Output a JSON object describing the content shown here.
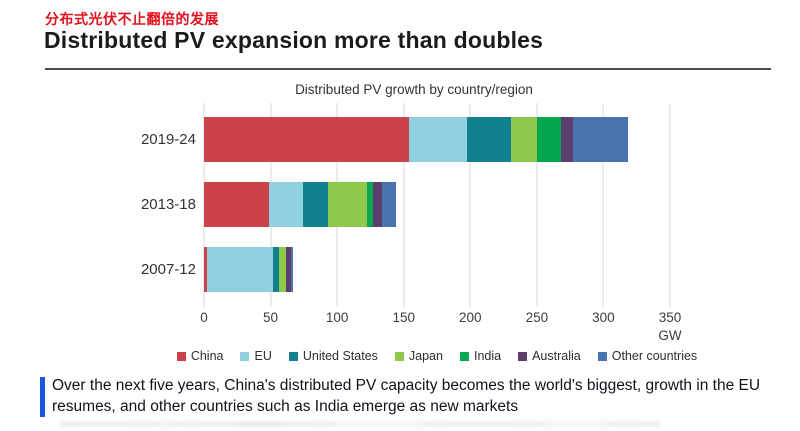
{
  "header": {
    "subtitle_cn": "分布式光伏不止翻倍的发展",
    "title": "Distributed PV expansion more than doubles"
  },
  "chart_data": {
    "type": "bar",
    "orientation": "horizontal",
    "stacked": true,
    "title": "Distributed PV growth by country/region",
    "unit": "GW",
    "categories": [
      "2019-24",
      "2013-18",
      "2007-12"
    ],
    "series": [
      {
        "name": "China",
        "color": "#cb4349",
        "values": [
          154,
          49,
          2.5
        ]
      },
      {
        "name": "EU",
        "color": "#8fd1e0",
        "values": [
          43.5,
          25,
          49
        ]
      },
      {
        "name": "United States",
        "color": "#11808e",
        "values": [
          33,
          19.5,
          4.7
        ]
      },
      {
        "name": "Japan",
        "color": "#8dc94a",
        "values": [
          19.5,
          29,
          5.3
        ]
      },
      {
        "name": "India",
        "color": "#04a64f",
        "values": [
          18,
          4.5,
          0
        ]
      },
      {
        "name": "Australia",
        "color": "#5d3f6f",
        "values": [
          9,
          6.5,
          3.5
        ]
      },
      {
        "name": "Other countries",
        "color": "#4a74ad",
        "values": [
          41.5,
          10.5,
          2
        ]
      }
    ],
    "xlim": [
      0,
      350
    ],
    "xticks": [
      0,
      50,
      100,
      150,
      200,
      250,
      300,
      350
    ],
    "grid": true,
    "legend_position": "bottom"
  },
  "caption": {
    "text": "Over the next five years, China's distributed PV capacity becomes the world's biggest, growth in the EU resumes, and other countries such as India emerge as new markets"
  }
}
